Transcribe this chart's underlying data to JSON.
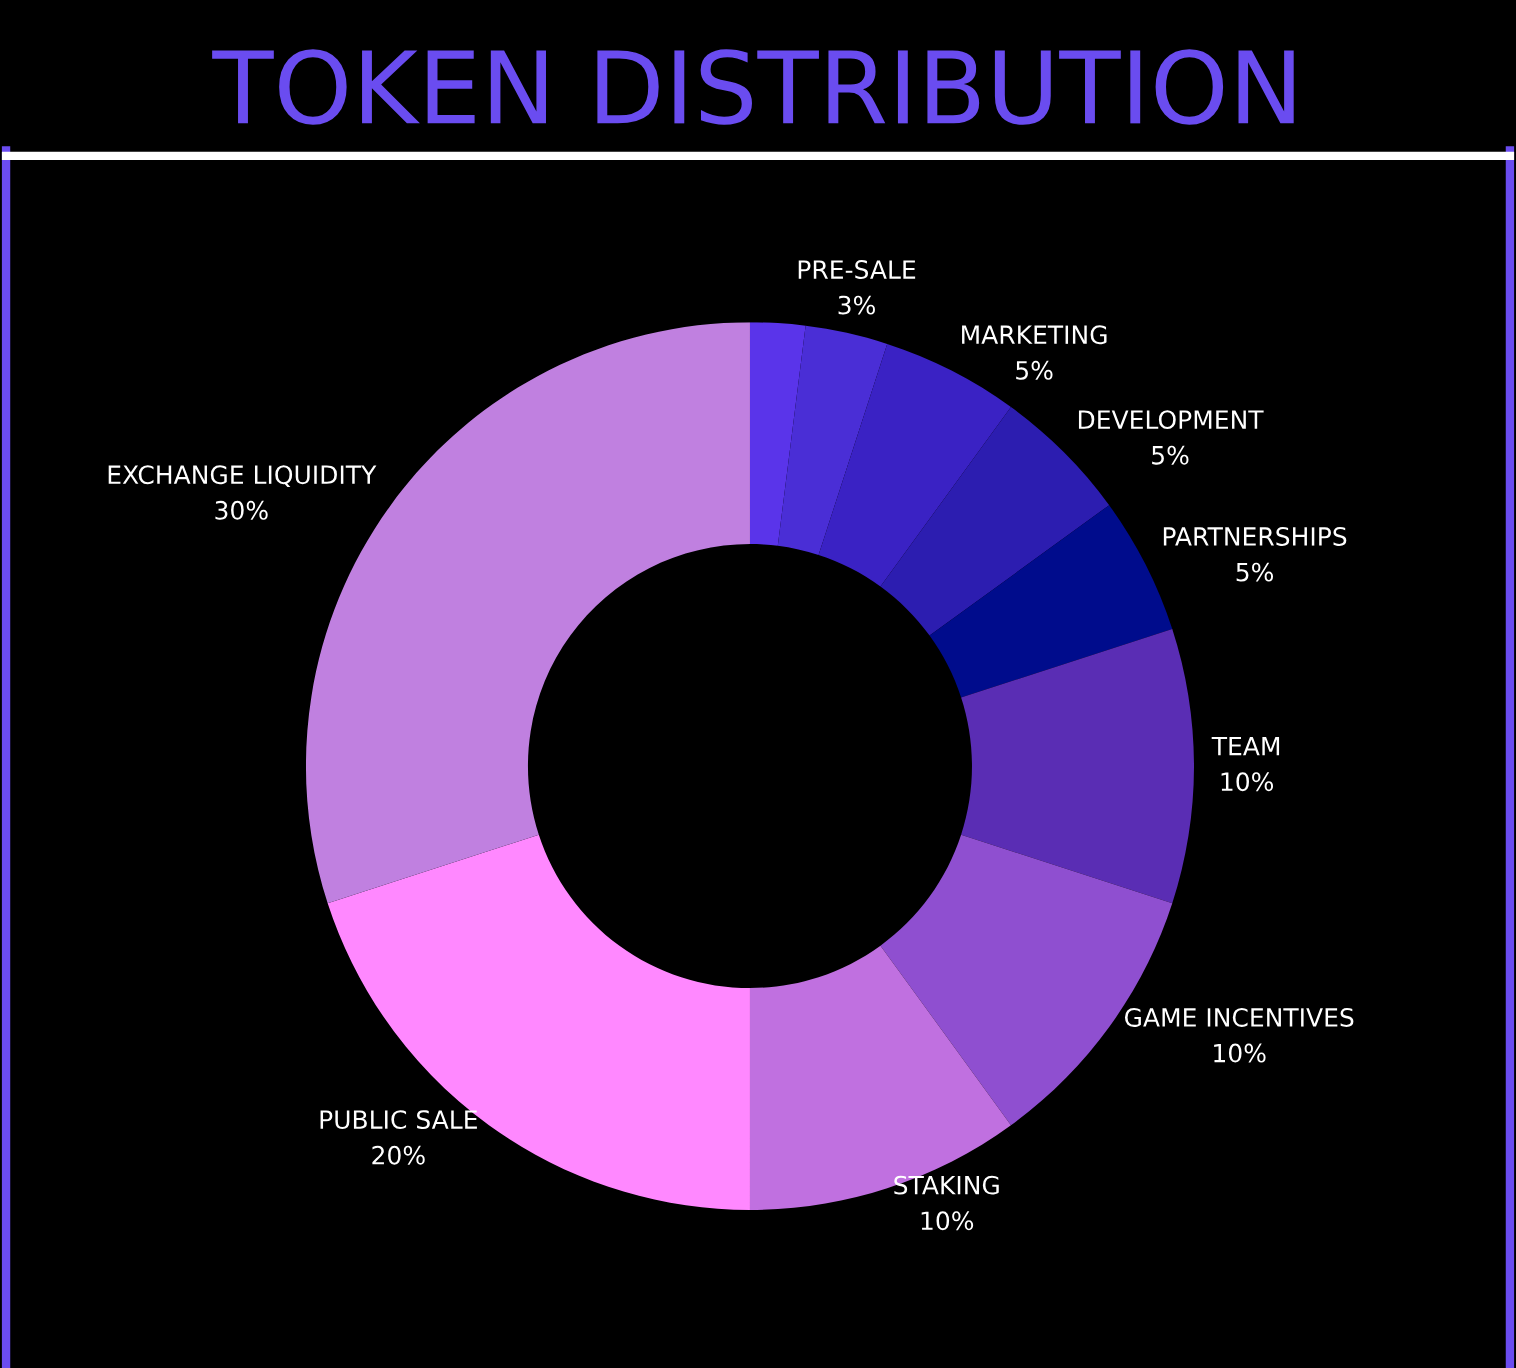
{
  "chart_data": {
    "type": "donut",
    "title": "TOKEN DISTRIBUTION",
    "categories": [
      null,
      "PRE-SALE",
      "MARKETING",
      "DEVELOPMENT",
      "PARTNERSHIPS",
      "TEAM",
      "GAME INCENTIVES",
      "STAKING",
      "PUBLIC SALE",
      "EXCHANGE LIQUIDITY"
    ],
    "values": [
      2,
      3,
      5,
      5,
      5,
      10,
      10,
      10,
      20,
      30
    ],
    "value_labels": [
      null,
      "3%",
      "5%",
      "5%",
      "5%",
      "10%",
      "10%",
      "10%",
      "20%",
      "30%"
    ],
    "colors": [
      "#5a34ea",
      "#4a2ed6",
      "#3a22c4",
      "#2c1db0",
      "#000c8c",
      "#5a2db4",
      "#8f4fd0",
      "#c070e0",
      "#ff88ff",
      "#c080e0"
    ],
    "legend": false
  }
}
